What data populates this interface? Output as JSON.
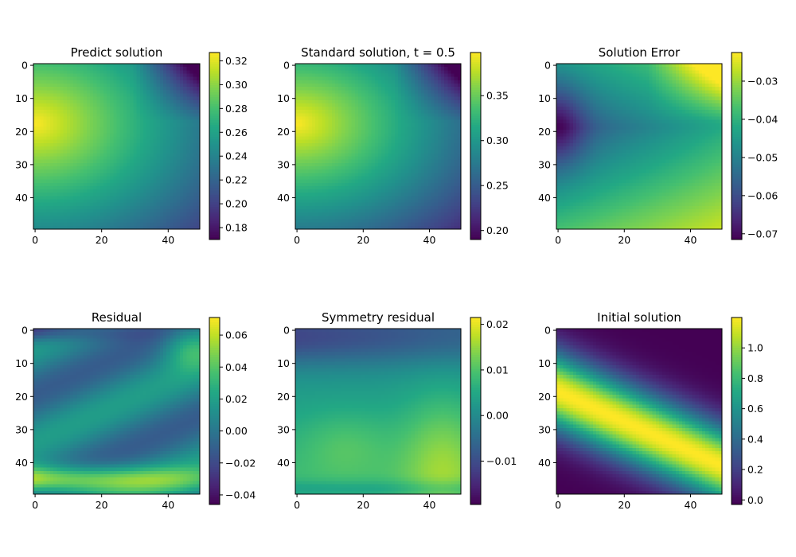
{
  "chart_data": [
    {
      "type": "heatmap",
      "title": "Predict solution",
      "field": "predict",
      "xticks": [
        "0",
        "20",
        "40"
      ],
      "yticks": [
        "0",
        "10",
        "20",
        "30",
        "40"
      ],
      "xlim": [
        -0.5,
        49.5
      ],
      "ylim": [
        49.5,
        -0.5
      ],
      "vmin": 0.17,
      "vmax": 0.327,
      "colorbar_ticks": [
        {
          "value": 0.18,
          "label": "0.18"
        },
        {
          "value": 0.2,
          "label": "0.20"
        },
        {
          "value": 0.22,
          "label": "0.22"
        },
        {
          "value": 0.24,
          "label": "0.24"
        },
        {
          "value": 0.26,
          "label": "0.26"
        },
        {
          "value": 0.28,
          "label": "0.28"
        },
        {
          "value": 0.3,
          "label": "0.30"
        },
        {
          "value": 0.32,
          "label": "0.32"
        }
      ]
    },
    {
      "type": "heatmap",
      "title": "Standard solution, t = 0.5",
      "field": "standard",
      "xticks": [
        "0",
        "20",
        "40"
      ],
      "yticks": [
        "0",
        "10",
        "20",
        "30",
        "40"
      ],
      "xlim": [
        -0.5,
        49.5
      ],
      "ylim": [
        49.5,
        -0.5
      ],
      "vmin": 0.19,
      "vmax": 0.398,
      "colorbar_ticks": [
        {
          "value": 0.2,
          "label": "0.20"
        },
        {
          "value": 0.25,
          "label": "0.25"
        },
        {
          "value": 0.3,
          "label": "0.30"
        },
        {
          "value": 0.35,
          "label": "0.35"
        }
      ]
    },
    {
      "type": "heatmap",
      "title": "Solution Error",
      "field": "error",
      "xticks": [
        "0",
        "20",
        "40"
      ],
      "yticks": [
        "0",
        "10",
        "20",
        "30",
        "40"
      ],
      "xlim": [
        -0.5,
        49.5
      ],
      "ylim": [
        49.5,
        -0.5
      ],
      "vmin": -0.0715,
      "vmax": -0.0225,
      "colorbar_ticks": [
        {
          "value": -0.07,
          "label": "−0.07"
        },
        {
          "value": -0.06,
          "label": "−0.06"
        },
        {
          "value": -0.05,
          "label": "−0.05"
        },
        {
          "value": -0.04,
          "label": "−0.04"
        },
        {
          "value": -0.03,
          "label": "−0.03"
        }
      ]
    },
    {
      "type": "heatmap",
      "title": "Residual",
      "field": "residual",
      "xticks": [
        "0",
        "20",
        "40"
      ],
      "yticks": [
        "0",
        "10",
        "20",
        "30",
        "40"
      ],
      "xlim": [
        -0.5,
        49.5
      ],
      "ylim": [
        49.5,
        -0.5
      ],
      "vmin": -0.046,
      "vmax": 0.071,
      "colorbar_ticks": [
        {
          "value": -0.04,
          "label": "−0.04"
        },
        {
          "value": -0.02,
          "label": "−0.02"
        },
        {
          "value": 0.0,
          "label": "0.00"
        },
        {
          "value": 0.02,
          "label": "0.02"
        },
        {
          "value": 0.04,
          "label": "0.04"
        },
        {
          "value": 0.06,
          "label": "0.06"
        }
      ]
    },
    {
      "type": "heatmap",
      "title": "Symmetry residual",
      "field": "symmetry",
      "xticks": [
        "0",
        "20",
        "40"
      ],
      "yticks": [
        "0",
        "10",
        "20",
        "30",
        "40"
      ],
      "xlim": [
        -0.5,
        49.5
      ],
      "ylim": [
        49.5,
        -0.5
      ],
      "vmin": -0.0195,
      "vmax": 0.0215,
      "colorbar_ticks": [
        {
          "value": -0.01,
          "label": "−0.01"
        },
        {
          "value": 0.0,
          "label": "0.00"
        },
        {
          "value": 0.01,
          "label": "0.01"
        },
        {
          "value": 0.02,
          "label": "0.02"
        }
      ]
    },
    {
      "type": "heatmap",
      "title": "Initial solution",
      "field": "initial",
      "xticks": [
        "0",
        "20",
        "40"
      ],
      "yticks": [
        "0",
        "10",
        "20",
        "30",
        "40"
      ],
      "xlim": [
        -0.5,
        49.5
      ],
      "ylim": [
        49.5,
        -0.5
      ],
      "vmin": -0.03,
      "vmax": 1.2,
      "colorbar_ticks": [
        {
          "value": 0.0,
          "label": "0.0"
        },
        {
          "value": 0.2,
          "label": "0.2"
        },
        {
          "value": 0.4,
          "label": "0.4"
        },
        {
          "value": 0.6,
          "label": "0.6"
        },
        {
          "value": 0.8,
          "label": "0.8"
        },
        {
          "value": 1.0,
          "label": "1.0"
        }
      ]
    }
  ]
}
